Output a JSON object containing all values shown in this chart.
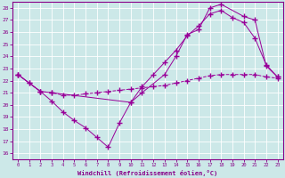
{
  "xlabel": "Windchill (Refroidissement éolien,°C)",
  "bg_color": "#cce8e8",
  "line_color": "#990099",
  "grid_color": "#aacccc",
  "xlim": [
    -0.5,
    23.5
  ],
  "ylim": [
    15.5,
    28.5
  ],
  "yticks": [
    16,
    17,
    18,
    19,
    20,
    21,
    22,
    23,
    24,
    25,
    26,
    27,
    28
  ],
  "xticks": [
    0,
    1,
    2,
    3,
    4,
    5,
    6,
    7,
    8,
    9,
    10,
    11,
    12,
    13,
    14,
    15,
    16,
    17,
    18,
    19,
    20,
    21,
    22,
    23
  ],
  "line1_x": [
    0,
    1,
    2,
    3,
    4,
    5,
    6,
    7,
    8,
    9,
    10,
    11,
    12,
    13,
    14,
    15,
    16,
    17,
    18,
    19,
    20,
    21,
    22,
    23
  ],
  "line1_y": [
    22.5,
    21.8,
    21.1,
    21.0,
    20.8,
    20.8,
    20.9,
    21.0,
    21.1,
    21.2,
    21.3,
    21.4,
    21.5,
    21.6,
    21.8,
    22.0,
    22.2,
    22.4,
    22.5,
    22.5,
    22.5,
    22.5,
    22.3,
    22.2
  ],
  "line2_x": [
    0,
    1,
    2,
    3,
    4,
    5,
    6,
    7,
    8,
    9,
    10,
    11,
    12,
    13,
    14,
    15,
    16,
    17,
    18,
    19,
    20,
    21,
    22,
    23
  ],
  "line2_y": [
    22.5,
    21.8,
    21.1,
    20.3,
    19.4,
    18.7,
    18.1,
    17.3,
    16.5,
    18.5,
    20.2,
    21.5,
    22.5,
    23.5,
    24.5,
    25.7,
    26.5,
    27.5,
    27.8,
    27.2,
    26.8,
    25.5,
    23.3,
    22.3
  ],
  "line3_x": [
    0,
    2,
    3,
    10,
    11,
    13,
    14,
    15,
    16,
    17,
    18,
    20,
    21,
    22,
    23
  ],
  "line3_y": [
    22.5,
    21.1,
    21.0,
    20.2,
    21.0,
    22.5,
    24.0,
    25.8,
    26.2,
    28.0,
    28.3,
    27.3,
    27.0,
    23.2,
    22.3
  ]
}
